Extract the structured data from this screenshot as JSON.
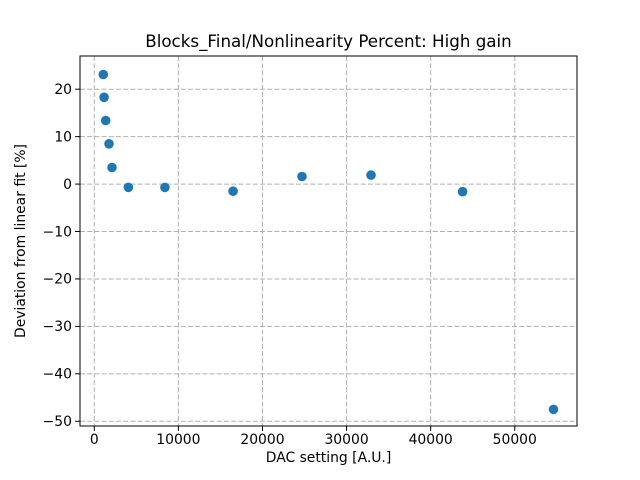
{
  "chart_data": {
    "type": "scatter",
    "title": "Blocks_Final/Nonlinearity Percent: High gain",
    "xlabel": "DAC setting [A.U.]",
    "ylabel": "Deviation from linear fit [%]",
    "x": [
      1070,
      1170,
      1360,
      1750,
      2100,
      4050,
      8400,
      16500,
      24700,
      32900,
      43800,
      54600
    ],
    "y": [
      23.1,
      18.3,
      13.4,
      8.5,
      3.5,
      -0.7,
      -0.7,
      -1.5,
      1.6,
      1.9,
      -1.6,
      -47.5
    ],
    "xlim": [
      -1700,
      57400
    ],
    "ylim": [
      -51,
      27
    ],
    "xticks": [
      0,
      10000,
      20000,
      30000,
      40000,
      50000
    ],
    "yticks": [
      20,
      10,
      0,
      -10,
      -20,
      -30,
      -40,
      -50
    ],
    "grid": true,
    "grid_style": "dashed",
    "legend": "none",
    "colors": {
      "marker": "#1f77b4",
      "grid": "#b0b0b0",
      "spine": "#000000",
      "text": "#000000",
      "background": "#ffffff"
    }
  }
}
